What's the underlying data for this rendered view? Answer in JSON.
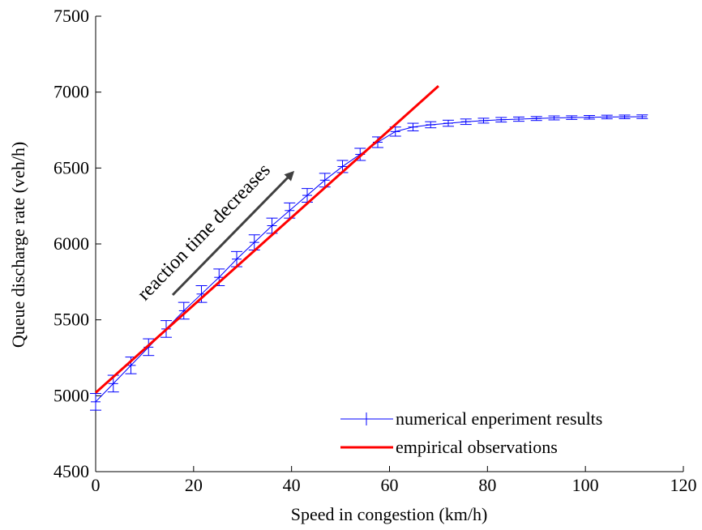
{
  "chart_data": {
    "type": "line",
    "xlabel": "Speed in congestion (km/h)",
    "ylabel": "Queue discharge rate (veh/h)",
    "xlim": [
      0,
      120
    ],
    "ylim": [
      4500,
      7500
    ],
    "xticks": [
      0,
      20,
      40,
      60,
      80,
      100,
      120
    ],
    "yticks": [
      4500,
      5000,
      5500,
      6000,
      6500,
      7000,
      7500
    ],
    "xtick_labels": [
      "0",
      "20",
      "40",
      "60",
      "80",
      "100",
      "120"
    ],
    "ytick_labels": [
      "4500",
      "5000",
      "5500",
      "6000",
      "6500",
      "7000",
      "7500"
    ],
    "grid": false,
    "legend_position": "bottom-right",
    "annotation": "reaction time decreases",
    "series": [
      {
        "name": "numerical enperiment results",
        "color": "#0000ff",
        "style": "line-with-errorbars",
        "x": [
          0,
          3.6,
          7.2,
          10.8,
          14.4,
          18,
          21.6,
          25.2,
          28.8,
          32.4,
          36,
          39.6,
          43.2,
          46.8,
          50.4,
          54,
          57.6,
          61.2,
          64.8,
          68.4,
          72,
          75.6,
          79.2,
          82.8,
          86.4,
          90,
          93.6,
          97.2,
          100.8,
          104.4,
          108,
          111.6
        ],
        "y": [
          4960,
          5080,
          5200,
          5320,
          5440,
          5560,
          5670,
          5780,
          5900,
          6010,
          6120,
          6220,
          6320,
          6420,
          6510,
          6590,
          6670,
          6740,
          6770,
          6785,
          6795,
          6805,
          6812,
          6818,
          6822,
          6826,
          6830,
          6832,
          6834,
          6836,
          6837,
          6838
        ],
        "err": [
          55,
          55,
          55,
          55,
          55,
          55,
          55,
          55,
          50,
          50,
          50,
          50,
          45,
          45,
          40,
          40,
          35,
          30,
          25,
          20,
          20,
          18,
          16,
          15,
          14,
          13,
          13,
          12,
          12,
          12,
          12,
          12
        ]
      },
      {
        "name": "empirical observations",
        "color": "#ff0000",
        "style": "line",
        "x": [
          0,
          70
        ],
        "y": [
          5020,
          7040
        ]
      }
    ]
  }
}
